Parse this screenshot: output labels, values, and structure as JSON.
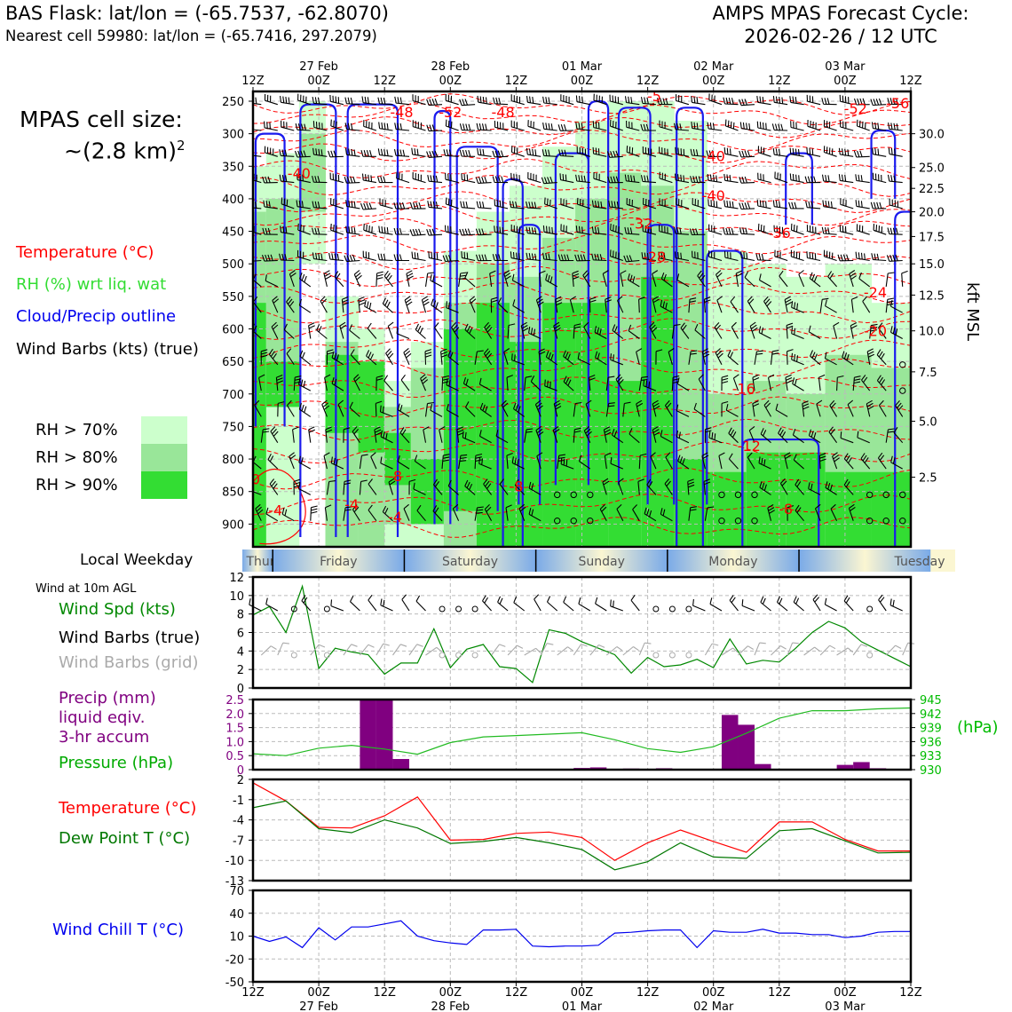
{
  "header": {
    "title_left": "BAS Flask: lat/lon = (-65.7537, -62.8070)",
    "subtitle_left": "Nearest cell 59980: lat/lon = (-65.7416, 297.2079)",
    "title_right_1": "AMPS MPAS Forecast Cycle:",
    "title_right_2": "2026-02-26 / 12 UTC"
  },
  "colors": {
    "temperature": "#ff0000",
    "rh": "#22cc22",
    "cloud": "#0000ee",
    "wind": "#000000",
    "precip": "#800080",
    "pressure": "#00bb00",
    "dewpoint": "#007700",
    "windchill": "#0000ee",
    "rh70": "#ccffcc",
    "rh80": "#99e699",
    "rh90": "#33dd33"
  },
  "time_axis": {
    "ticks": [
      "12Z",
      "00Z",
      "12Z",
      "00Z",
      "12Z",
      "00Z",
      "12Z",
      "00Z",
      "12Z",
      "00Z",
      "12Z"
    ],
    "dates": [
      {
        "tick_index": 1,
        "label": "27 Feb"
      },
      {
        "tick_index": 3,
        "label": "28 Feb"
      },
      {
        "tick_index": 5,
        "label": "01 Mar"
      },
      {
        "tick_index": 7,
        "label": "02 Mar"
      },
      {
        "tick_index": 9,
        "label": "03 Mar"
      }
    ]
  },
  "sidebar": {
    "cell_size_label": "MPAS cell size:",
    "cell_size_value": "~(2.8 km)",
    "cell_size_exp": "2",
    "legend_temperature": "Temperature (°C)",
    "legend_rh": "RH (%) wrt liq. wat",
    "legend_cloud": "Cloud/Precip outline",
    "legend_wind": "Wind Barbs (kts) (true)",
    "rh70": "RH > 70%",
    "rh80": "RH > 80%",
    "rh90": "RH > 90%",
    "local_weekday": "Local Weekday",
    "wind10m": "Wind at 10m AGL",
    "wind_spd": "Wind Spd (kts)",
    "wind_barbs_true": "Wind Barbs (true)",
    "wind_barbs_grid": "Wind Barbs (grid)",
    "precip_1": "Precip (mm)",
    "precip_2": "liquid eqiv.",
    "precip_3": "3-hr accum",
    "pressure": "Pressure (hPa)",
    "temperature": "Temperature (°C)",
    "dewpoint": "Dew Point T (°C)",
    "windchill": "Wind Chill T (°C)",
    "pressure_unit": "(hPa)",
    "kft_label": "kft MSL"
  },
  "weekdays": [
    "Thursday",
    "Friday",
    "Saturday",
    "Sunday",
    "Monday",
    "Tuesday"
  ],
  "chart_data": [
    {
      "type": "heatmap",
      "name": "cross-section",
      "y_left_ticks": [
        250,
        300,
        350,
        400,
        450,
        500,
        550,
        600,
        650,
        700,
        750,
        800,
        850,
        900
      ],
      "y_right_ticks": [
        "30.0",
        "25.0",
        "22.5",
        "20.0",
        "17.5",
        "15.0",
        "12.5",
        "10.0",
        "7.5",
        "5.0",
        "2.5"
      ],
      "y_right_pressure": [
        300,
        352,
        384,
        420,
        458,
        500,
        548,
        603,
        666,
        742,
        828
      ],
      "temperature_labels": [
        {
          "t": 1.13,
          "p": 268,
          "text": "-48"
        },
        {
          "t": 1.5,
          "p": 268,
          "text": "-52"
        },
        {
          "t": 1.9,
          "p": 268,
          "text": "-48"
        },
        {
          "t": 3.05,
          "p": 243,
          "text": "-5"
        },
        {
          "t": 4.58,
          "p": 262,
          "text": "-52"
        },
        {
          "t": 4.9,
          "p": 254,
          "text": "-56"
        },
        {
          "t": 0.35,
          "p": 362,
          "text": "-40"
        },
        {
          "t": 3.5,
          "p": 335,
          "text": "-40"
        },
        {
          "t": 3.5,
          "p": 396,
          "text": "-40"
        },
        {
          "t": 4.0,
          "p": 453,
          "text": "-36"
        },
        {
          "t": 2.95,
          "p": 439,
          "text": "-32"
        },
        {
          "t": 3.05,
          "p": 490,
          "text": "-28"
        },
        {
          "t": 4.73,
          "p": 545,
          "text": "-24"
        },
        {
          "t": 4.73,
          "p": 604,
          "text": "-20"
        },
        {
          "t": 3.73,
          "p": 693,
          "text": "-16"
        },
        {
          "t": 3.77,
          "p": 781,
          "text": "-12"
        },
        {
          "t": 2.0,
          "p": 843,
          "text": "-8"
        },
        {
          "t": 4.05,
          "p": 878,
          "text": "-8"
        },
        {
          "t": 1.08,
          "p": 827,
          "text": "-8"
        },
        {
          "t": 0.75,
          "p": 871,
          "text": "-4"
        },
        {
          "t": 1.08,
          "p": 890,
          "text": "-4"
        },
        {
          "t": 0.17,
          "p": 880,
          "text": "-4"
        },
        {
          "t": 0.02,
          "p": 832,
          "text": "0"
        }
      ]
    },
    {
      "type": "line",
      "name": "wind speed 10m",
      "ylabel": "",
      "ylim": [
        0,
        12
      ],
      "yticks": [
        0,
        2,
        4,
        6,
        8,
        10,
        12
      ],
      "x": [
        0,
        0.125,
        0.25,
        0.375,
        0.5,
        0.625,
        0.75,
        0.875,
        1,
        1.125,
        1.25,
        1.375,
        1.5,
        1.625,
        1.75,
        1.875,
        2,
        2.125,
        2.25,
        2.375,
        2.5,
        2.625,
        2.75,
        2.875,
        3,
        3.125,
        3.25,
        3.375,
        3.5,
        3.625,
        3.75,
        3.875,
        4,
        4.125,
        4.25,
        4.375,
        4.5,
        4.625,
        4.75,
        4.875,
        5
      ],
      "values": [
        7.9,
        8.8,
        6.0,
        11.0,
        2.1,
        4.3,
        3.9,
        3.6,
        1.5,
        2.7,
        2.7,
        6.4,
        2.2,
        4.2,
        4.7,
        2.3,
        2.1,
        0.6,
        6.3,
        5.9,
        5.0,
        4.3,
        3.6,
        1.6,
        3.3,
        2.3,
        2.5,
        3.1,
        2.2,
        5.3,
        2.6,
        3.0,
        2.8,
        4.3,
        6.0,
        7.2,
        6.5,
        5.0,
        4.1,
        3.2,
        2.3
      ]
    },
    {
      "type": "bar",
      "name": "precip 3-hr accum",
      "ylim": [
        0,
        2.5
      ],
      "yticks": [
        0,
        0.5,
        1.0,
        1.5,
        2.0,
        2.5
      ],
      "ytick_labels": [
        "0",
        "0.5",
        "1.0",
        "1.5",
        "2.0",
        "2.5"
      ],
      "bars": [
        {
          "x": 0.875,
          "value": 2.5
        },
        {
          "x": 1.0,
          "value": 2.5
        },
        {
          "x": 1.125,
          "value": 0.38
        },
        {
          "x": 2.5,
          "value": 0.06
        },
        {
          "x": 2.625,
          "value": 0.08
        },
        {
          "x": 3.125,
          "value": 0.05
        },
        {
          "x": 2.875,
          "value": 0.04
        },
        {
          "x": 4.5,
          "value": 0.17
        },
        {
          "x": 4.625,
          "value": 0.27
        },
        {
          "x": 4.75,
          "value": 0.05
        },
        {
          "x": 3.625,
          "value": 1.95
        },
        {
          "x": 3.75,
          "value": 1.6
        },
        {
          "x": 3.875,
          "value": 0.2
        }
      ]
    },
    {
      "type": "line",
      "name": "pressure",
      "ylim": [
        930,
        945
      ],
      "yticks": [
        930,
        933,
        936,
        939,
        942,
        945
      ],
      "x": [
        0,
        0.25,
        0.5,
        0.75,
        1.0,
        1.25,
        1.5,
        1.75,
        2.0,
        2.25,
        2.5,
        2.75,
        3.0,
        3.25,
        3.5,
        3.75,
        4.0,
        4.25,
        4.5,
        4.75,
        5.0
      ],
      "values": [
        933.4,
        933.0,
        934.6,
        935.2,
        934.4,
        933.3,
        935.8,
        937.0,
        937.3,
        937.6,
        937.9,
        936.4,
        934.5,
        933.7,
        934.9,
        937.8,
        941.0,
        942.6,
        942.6,
        943.0,
        943.2
      ]
    },
    {
      "type": "line",
      "name": "temperature and dew point",
      "ylim": [
        -13,
        2
      ],
      "yticks": [
        -13,
        -10,
        -7,
        -4,
        -1,
        2
      ],
      "x": [
        0,
        0.25,
        0.5,
        0.75,
        1.0,
        1.25,
        1.5,
        1.75,
        2.0,
        2.25,
        2.5,
        2.75,
        3.0,
        3.25,
        3.5,
        3.75,
        4.0,
        4.25,
        4.5,
        4.75,
        5.0
      ],
      "series": [
        {
          "name": "Temperature",
          "color": "#ff0000",
          "values": [
            1.5,
            -1.2,
            -5.1,
            -5.2,
            -3.4,
            -0.6,
            -7.0,
            -6.9,
            -6.0,
            -5.8,
            -6.6,
            -10.0,
            -7.4,
            -5.5,
            -7.2,
            -8.8,
            -4.3,
            -4.3,
            -6.9,
            -8.6,
            -8.6
          ]
        },
        {
          "name": "Dew Point",
          "color": "#007700",
          "values": [
            -2.2,
            -1.2,
            -5.3,
            -5.9,
            -4.0,
            -5.2,
            -7.5,
            -7.2,
            -6.6,
            -7.4,
            -8.4,
            -11.4,
            -10.2,
            -7.4,
            -9.5,
            -9.7,
            -5.6,
            -5.3,
            -7.1,
            -8.9,
            -8.8
          ]
        }
      ]
    },
    {
      "type": "line",
      "name": "wind chill",
      "ylim": [
        -50,
        70
      ],
      "yticks": [
        -50,
        -20,
        10,
        40,
        70
      ],
      "x": [
        0,
        0.125,
        0.25,
        0.375,
        0.5,
        0.625,
        0.75,
        0.875,
        1,
        1.125,
        1.25,
        1.375,
        1.5,
        1.625,
        1.75,
        1.875,
        2,
        2.125,
        2.25,
        2.375,
        2.5,
        2.625,
        2.75,
        2.875,
        3,
        3.125,
        3.25,
        3.375,
        3.5,
        3.625,
        3.75,
        3.875,
        4,
        4.125,
        4.25,
        4.375,
        4.5,
        4.625,
        4.75,
        4.875,
        5
      ],
      "values": [
        10,
        3,
        9,
        -5,
        21,
        5,
        22,
        22,
        26,
        30,
        10,
        4,
        1,
        -1,
        18,
        18,
        19,
        -3,
        -4,
        -3,
        -3,
        -2,
        14,
        15,
        17,
        18,
        18,
        -5,
        17,
        15,
        15,
        19,
        14,
        14,
        12,
        12,
        8,
        10,
        15,
        16,
        16
      ]
    }
  ]
}
